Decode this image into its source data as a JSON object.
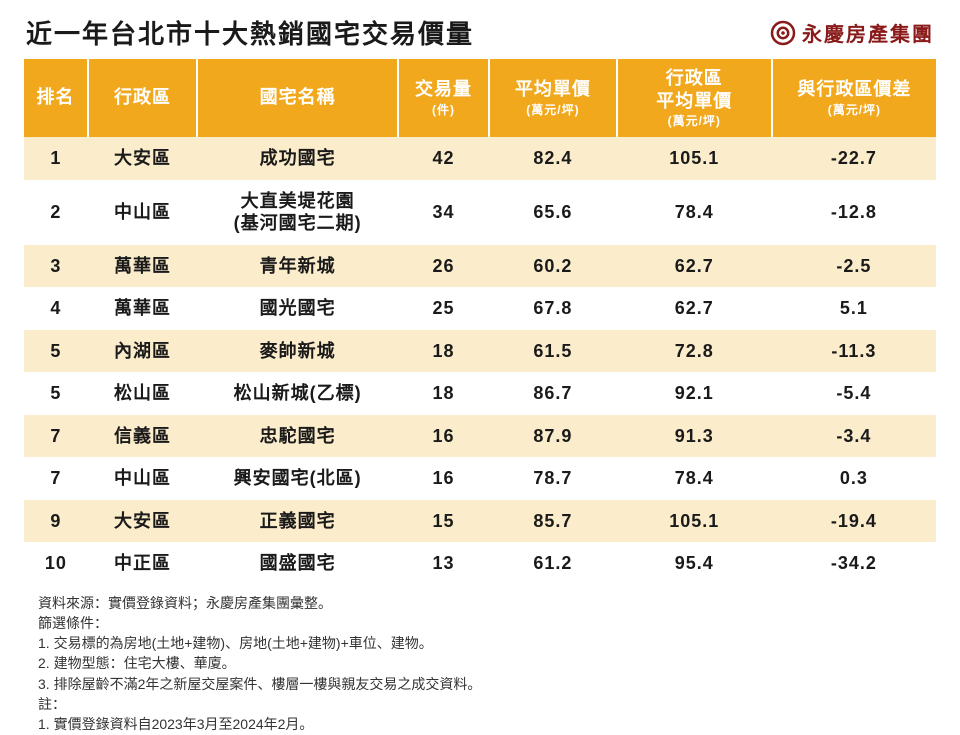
{
  "title": "近一年台北市十大熱銷國宅交易價量",
  "brand": "永慶房產集團",
  "brand_color": "#8a1a1a",
  "colors": {
    "header_bg": "#f2a81d",
    "header_fg": "#ffffff",
    "row_odd_bg": "#fbeccb",
    "row_even_bg": "#ffffff",
    "text": "#1a1a1a"
  },
  "columns": [
    {
      "label": "排名",
      "sub": ""
    },
    {
      "label": "行政區",
      "sub": ""
    },
    {
      "label": "國宅名稱",
      "sub": ""
    },
    {
      "label": "交易量",
      "sub": "(件)"
    },
    {
      "label": "平均單價",
      "sub": "(萬元/坪)"
    },
    {
      "label": "行政區\n平均單價",
      "sub": "(萬元/坪)"
    },
    {
      "label": "與行政區價差",
      "sub": "(萬元/坪)"
    }
  ],
  "rows": [
    {
      "rank": "1",
      "district": "大安區",
      "name": "成功國宅",
      "volume": "42",
      "avg": "82.4",
      "regavg": "105.1",
      "diff": "-22.7"
    },
    {
      "rank": "2",
      "district": "中山區",
      "name": "大直美堤花園\n(基河國宅二期)",
      "volume": "34",
      "avg": "65.6",
      "regavg": "78.4",
      "diff": "-12.8"
    },
    {
      "rank": "3",
      "district": "萬華區",
      "name": "青年新城",
      "volume": "26",
      "avg": "60.2",
      "regavg": "62.7",
      "diff": "-2.5"
    },
    {
      "rank": "4",
      "district": "萬華區",
      "name": "國光國宅",
      "volume": "25",
      "avg": "67.8",
      "regavg": "62.7",
      "diff": "5.1"
    },
    {
      "rank": "5",
      "district": "內湖區",
      "name": "麥帥新城",
      "volume": "18",
      "avg": "61.5",
      "regavg": "72.8",
      "diff": "-11.3"
    },
    {
      "rank": "5",
      "district": "松山區",
      "name": "松山新城(乙標)",
      "volume": "18",
      "avg": "86.7",
      "regavg": "92.1",
      "diff": "-5.4"
    },
    {
      "rank": "7",
      "district": "信義區",
      "name": "忠駝國宅",
      "volume": "16",
      "avg": "87.9",
      "regavg": "91.3",
      "diff": "-3.4"
    },
    {
      "rank": "7",
      "district": "中山區",
      "name": "興安國宅(北區)",
      "volume": "16",
      "avg": "78.7",
      "regavg": "78.4",
      "diff": "0.3"
    },
    {
      "rank": "9",
      "district": "大安區",
      "name": "正義國宅",
      "volume": "15",
      "avg": "85.7",
      "regavg": "105.1",
      "diff": "-19.4"
    },
    {
      "rank": "10",
      "district": "中正區",
      "name": "國盛國宅",
      "volume": "13",
      "avg": "61.2",
      "regavg": "95.4",
      "diff": "-34.2"
    }
  ],
  "footnotes": [
    "資料來源：實價登錄資料；永慶房產集團彙整。",
    "篩選條件：",
    "1. 交易標的為房地(土地+建物)、房地(土地+建物)+車位、建物。",
    "2. 建物型態：住宅大樓、華廈。",
    "3. 排除屋齡不滿2年之新屋交屋案件、樓層一樓與親友交易之成交資料。",
    "註：",
    "1. 實價登錄資料自2023年3月至2024年2月。"
  ]
}
